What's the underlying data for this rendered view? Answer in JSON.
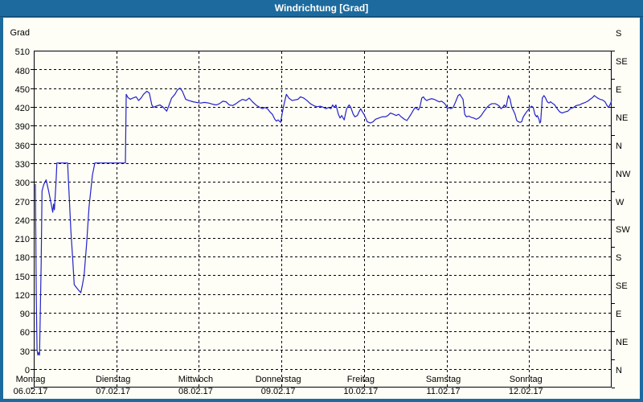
{
  "window": {
    "title": "Windrichtung [Grad]"
  },
  "colors": {
    "titlebar_blue": "#1D6B9E",
    "titlebar_edge": "#134B73",
    "content_background": "#FEFEF6",
    "line_blue": "#2222CC",
    "grid_black": "#000000",
    "title_text": "#FFFFFF"
  },
  "chart_data": {
    "type": "line",
    "title": "Windrichtung [Grad]",
    "y_axis_left": {
      "label": "Grad",
      "min": 0,
      "max": 540,
      "tick_step": 30,
      "ticks": [
        0,
        30,
        60,
        90,
        120,
        150,
        180,
        210,
        240,
        270,
        300,
        330,
        360,
        390,
        420,
        450,
        480,
        510
      ]
    },
    "y_axis_right": {
      "tick_step_degrees": 45,
      "labels_bottom_to_top": [
        "N",
        "NE",
        "E",
        "SE",
        "S",
        "SW",
        "W",
        "NW",
        "N",
        "NE",
        "E",
        "SE",
        "S"
      ]
    },
    "x_axis": {
      "days": [
        {
          "name": "Montag",
          "date": "06.02.17"
        },
        {
          "name": "Dienstag",
          "date": "07.02.17"
        },
        {
          "name": "Mittwoch",
          "date": "08.02.17"
        },
        {
          "name": "Donnerstag",
          "date": "09.02.17"
        },
        {
          "name": "Freitag",
          "date": "10.02.17"
        },
        {
          "name": "Samstag",
          "date": "11.02.17"
        },
        {
          "name": "Sonntag",
          "date": "12.02.17"
        }
      ]
    },
    "grid": {
      "horizontal_step": 30,
      "vertical": "day_starts",
      "style": "dashed"
    },
    "series": [
      {
        "name": "Windrichtung",
        "unit": "Grad",
        "color": "#2222CC",
        "points_day_grad": [
          [
            0.02,
            326
          ],
          [
            0.03,
            150
          ],
          [
            0.04,
            60
          ],
          [
            0.05,
            52
          ],
          [
            0.06,
            56
          ],
          [
            0.07,
            52
          ],
          [
            0.09,
            200
          ],
          [
            0.1,
            315
          ],
          [
            0.12,
            325
          ],
          [
            0.15,
            333
          ],
          [
            0.18,
            315
          ],
          [
            0.21,
            295
          ],
          [
            0.23,
            281
          ],
          [
            0.24,
            294
          ],
          [
            0.25,
            285
          ],
          [
            0.27,
            330
          ],
          [
            0.28,
            360
          ],
          [
            0.41,
            360
          ],
          [
            0.45,
            250
          ],
          [
            0.47,
            210
          ],
          [
            0.49,
            165
          ],
          [
            0.53,
            158
          ],
          [
            0.57,
            152
          ],
          [
            0.59,
            165
          ],
          [
            0.61,
            180
          ],
          [
            0.64,
            230
          ],
          [
            0.67,
            290
          ],
          [
            0.71,
            340
          ],
          [
            0.74,
            360
          ],
          [
            1.11,
            360
          ],
          [
            1.12,
            470
          ],
          [
            1.14,
            465
          ],
          [
            1.17,
            462
          ],
          [
            1.2,
            464
          ],
          [
            1.24,
            466
          ],
          [
            1.27,
            460
          ],
          [
            1.3,
            464
          ],
          [
            1.33,
            470
          ],
          [
            1.37,
            475
          ],
          [
            1.4,
            472
          ],
          [
            1.43,
            453
          ],
          [
            1.45,
            449
          ],
          [
            1.48,
            451
          ],
          [
            1.53,
            453
          ],
          [
            1.57,
            449
          ],
          [
            1.61,
            443
          ],
          [
            1.64,
            453
          ],
          [
            1.67,
            464
          ],
          [
            1.71,
            470
          ],
          [
            1.74,
            477
          ],
          [
            1.77,
            480
          ],
          [
            1.8,
            475
          ],
          [
            1.84,
            462
          ],
          [
            1.88,
            460
          ],
          [
            1.93,
            458
          ],
          [
            1.97,
            457
          ],
          [
            2.02,
            456
          ],
          [
            2.07,
            457
          ],
          [
            2.12,
            456
          ],
          [
            2.17,
            454
          ],
          [
            2.21,
            453
          ],
          [
            2.25,
            455
          ],
          [
            2.29,
            459
          ],
          [
            2.33,
            458
          ],
          [
            2.37,
            453
          ],
          [
            2.41,
            452
          ],
          [
            2.45,
            455
          ],
          [
            2.49,
            459
          ],
          [
            2.53,
            462
          ],
          [
            2.57,
            460
          ],
          [
            2.61,
            464
          ],
          [
            2.65,
            458
          ],
          [
            2.7,
            452
          ],
          [
            2.74,
            449
          ],
          [
            2.77,
            447
          ],
          [
            2.8,
            449
          ],
          [
            2.83,
            447
          ],
          [
            2.86,
            442
          ],
          [
            2.89,
            438
          ],
          [
            2.92,
            430
          ],
          [
            2.94,
            427
          ],
          [
            2.96,
            429
          ],
          [
            2.99,
            425
          ],
          [
            3.01,
            440
          ],
          [
            3.03,
            453
          ],
          [
            3.06,
            470
          ],
          [
            3.09,
            464
          ],
          [
            3.13,
            460
          ],
          [
            3.16,
            461
          ],
          [
            3.2,
            462
          ],
          [
            3.23,
            466
          ],
          [
            3.27,
            464
          ],
          [
            3.31,
            460
          ],
          [
            3.35,
            455
          ],
          [
            3.39,
            452
          ],
          [
            3.43,
            450
          ],
          [
            3.47,
            451
          ],
          [
            3.51,
            449
          ],
          [
            3.54,
            447
          ],
          [
            3.57,
            449
          ],
          [
            3.6,
            447
          ],
          [
            3.62,
            453
          ],
          [
            3.64,
            449
          ],
          [
            3.66,
            453
          ],
          [
            3.69,
            438
          ],
          [
            3.71,
            432
          ],
          [
            3.73,
            436
          ],
          [
            3.76,
            429
          ],
          [
            3.79,
            447
          ],
          [
            3.82,
            453
          ],
          [
            3.84,
            449
          ],
          [
            3.87,
            438
          ],
          [
            3.89,
            434
          ],
          [
            3.92,
            436
          ],
          [
            3.94,
            442
          ],
          [
            3.96,
            447
          ],
          [
            3.98,
            442
          ],
          [
            4.0,
            438
          ],
          [
            4.04,
            426
          ],
          [
            4.08,
            424
          ],
          [
            4.11,
            426
          ],
          [
            4.14,
            430
          ],
          [
            4.18,
            432
          ],
          [
            4.22,
            434
          ],
          [
            4.26,
            434
          ],
          [
            4.29,
            436
          ],
          [
            4.32,
            440
          ],
          [
            4.36,
            438
          ],
          [
            4.39,
            436
          ],
          [
            4.42,
            438
          ],
          [
            4.45,
            434
          ],
          [
            4.49,
            430
          ],
          [
            4.52,
            428
          ],
          [
            4.54,
            432
          ],
          [
            4.57,
            438
          ],
          [
            4.6,
            445
          ],
          [
            4.62,
            449
          ],
          [
            4.64,
            447
          ],
          [
            4.66,
            445
          ],
          [
            4.68,
            451
          ],
          [
            4.7,
            464
          ],
          [
            4.72,
            466
          ],
          [
            4.74,
            462
          ],
          [
            4.76,
            460
          ],
          [
            4.79,
            462
          ],
          [
            4.82,
            463
          ],
          [
            4.85,
            462
          ],
          [
            4.88,
            460
          ],
          [
            4.91,
            458
          ],
          [
            4.94,
            459
          ],
          [
            4.97,
            456
          ],
          [
            4.99,
            453
          ],
          [
            5.01,
            447
          ],
          [
            5.03,
            449
          ],
          [
            5.05,
            447
          ],
          [
            5.08,
            449
          ],
          [
            5.11,
            458
          ],
          [
            5.14,
            468
          ],
          [
            5.16,
            470
          ],
          [
            5.18,
            466
          ],
          [
            5.2,
            462
          ],
          [
            5.22,
            438
          ],
          [
            5.24,
            434
          ],
          [
            5.27,
            435
          ],
          [
            5.3,
            433
          ],
          [
            5.33,
            432
          ],
          [
            5.36,
            430
          ],
          [
            5.39,
            432
          ],
          [
            5.42,
            436
          ],
          [
            5.45,
            442
          ],
          [
            5.49,
            449
          ],
          [
            5.52,
            453
          ],
          [
            5.55,
            455
          ],
          [
            5.59,
            455
          ],
          [
            5.62,
            453
          ],
          [
            5.64,
            451
          ],
          [
            5.66,
            447
          ],
          [
            5.68,
            449
          ],
          [
            5.7,
            453
          ],
          [
            5.72,
            449
          ],
          [
            5.74,
            462
          ],
          [
            5.75,
            468
          ],
          [
            5.77,
            462
          ],
          [
            5.79,
            449
          ],
          [
            5.81,
            444
          ],
          [
            5.83,
            438
          ],
          [
            5.85,
            428
          ],
          [
            5.87,
            426
          ],
          [
            5.89,
            425
          ],
          [
            5.91,
            426
          ],
          [
            5.93,
            434
          ],
          [
            5.95,
            438
          ],
          [
            5.97,
            442
          ],
          [
            5.99,
            445
          ],
          [
            6.01,
            449
          ],
          [
            6.03,
            451
          ],
          [
            6.05,
            449
          ],
          [
            6.07,
            438
          ],
          [
            6.09,
            434
          ],
          [
            6.1,
            436
          ],
          [
            6.12,
            430
          ],
          [
            6.13,
            424
          ],
          [
            6.14,
            426
          ],
          [
            6.16,
            464
          ],
          [
            6.18,
            468
          ],
          [
            6.2,
            464
          ],
          [
            6.22,
            458
          ],
          [
            6.24,
            456
          ],
          [
            6.26,
            458
          ],
          [
            6.28,
            456
          ],
          [
            6.31,
            453
          ],
          [
            6.34,
            447
          ],
          [
            6.37,
            442
          ],
          [
            6.4,
            440
          ],
          [
            6.44,
            442
          ],
          [
            6.47,
            443
          ],
          [
            6.5,
            447
          ],
          [
            6.54,
            449
          ],
          [
            6.57,
            452
          ],
          [
            6.61,
            453
          ],
          [
            6.64,
            455
          ],
          [
            6.68,
            457
          ],
          [
            6.71,
            459
          ],
          [
            6.74,
            462
          ],
          [
            6.77,
            465
          ],
          [
            6.79,
            468
          ],
          [
            6.81,
            466
          ],
          [
            6.83,
            464
          ],
          [
            6.86,
            462
          ],
          [
            6.89,
            461
          ],
          [
            6.92,
            458
          ],
          [
            6.94,
            453
          ],
          [
            6.96,
            449
          ],
          [
            6.97,
            451
          ],
          [
            6.99,
            456
          ],
          [
            7.0,
            462
          ]
        ]
      }
    ]
  }
}
